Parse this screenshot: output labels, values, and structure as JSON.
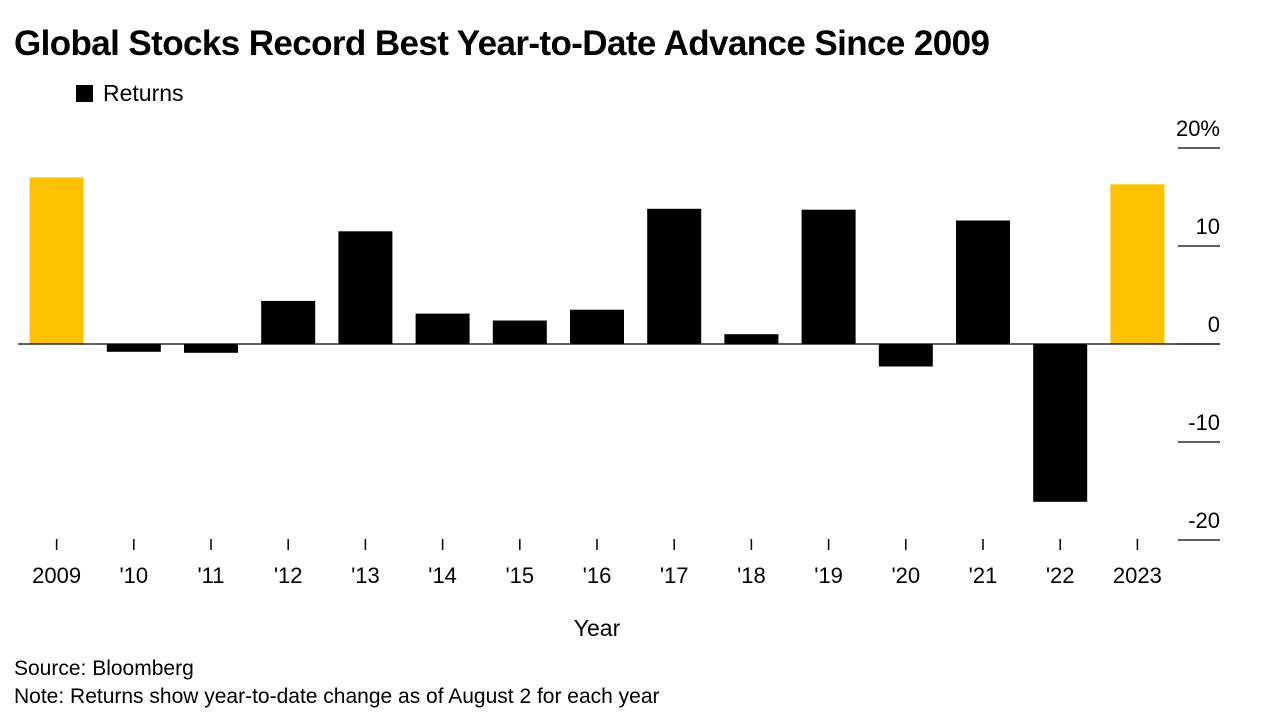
{
  "chart_data": {
    "type": "bar",
    "title": "Global Stocks Record Best Year-to-Date Advance Since 2009",
    "xlabel": "Year",
    "ylabel": "",
    "categories": [
      "2009",
      "'10",
      "'11",
      "'12",
      "'13",
      "'14",
      "'15",
      "'16",
      "'17",
      "'18",
      "'19",
      "'20",
      "'21",
      "'22",
      "2023"
    ],
    "series": [
      {
        "name": "Returns",
        "values": [
          17.0,
          -0.8,
          -0.9,
          4.4,
          11.5,
          3.1,
          2.4,
          3.5,
          13.8,
          1.0,
          13.7,
          -2.3,
          12.6,
          -16.1,
          16.3
        ]
      }
    ],
    "highlight_categories": [
      "2009",
      "2023"
    ],
    "ylim": [
      -20,
      20
    ],
    "y_ticks": [
      {
        "value": 20,
        "label": "20%"
      },
      {
        "value": 10,
        "label": "10"
      },
      {
        "value": 0,
        "label": "0"
      },
      {
        "value": -10,
        "label": "-10"
      },
      {
        "value": -20,
        "label": "-20"
      }
    ],
    "y_axis_side": "right",
    "grid": false,
    "legend_position": "top-left",
    "colors": {
      "bar": "#000000",
      "highlight": "#fcc100",
      "axis": "#000000"
    }
  },
  "source_text": "Source: Bloomberg",
  "note_text": "Note: Returns show year-to-date change as of August 2 for each year"
}
